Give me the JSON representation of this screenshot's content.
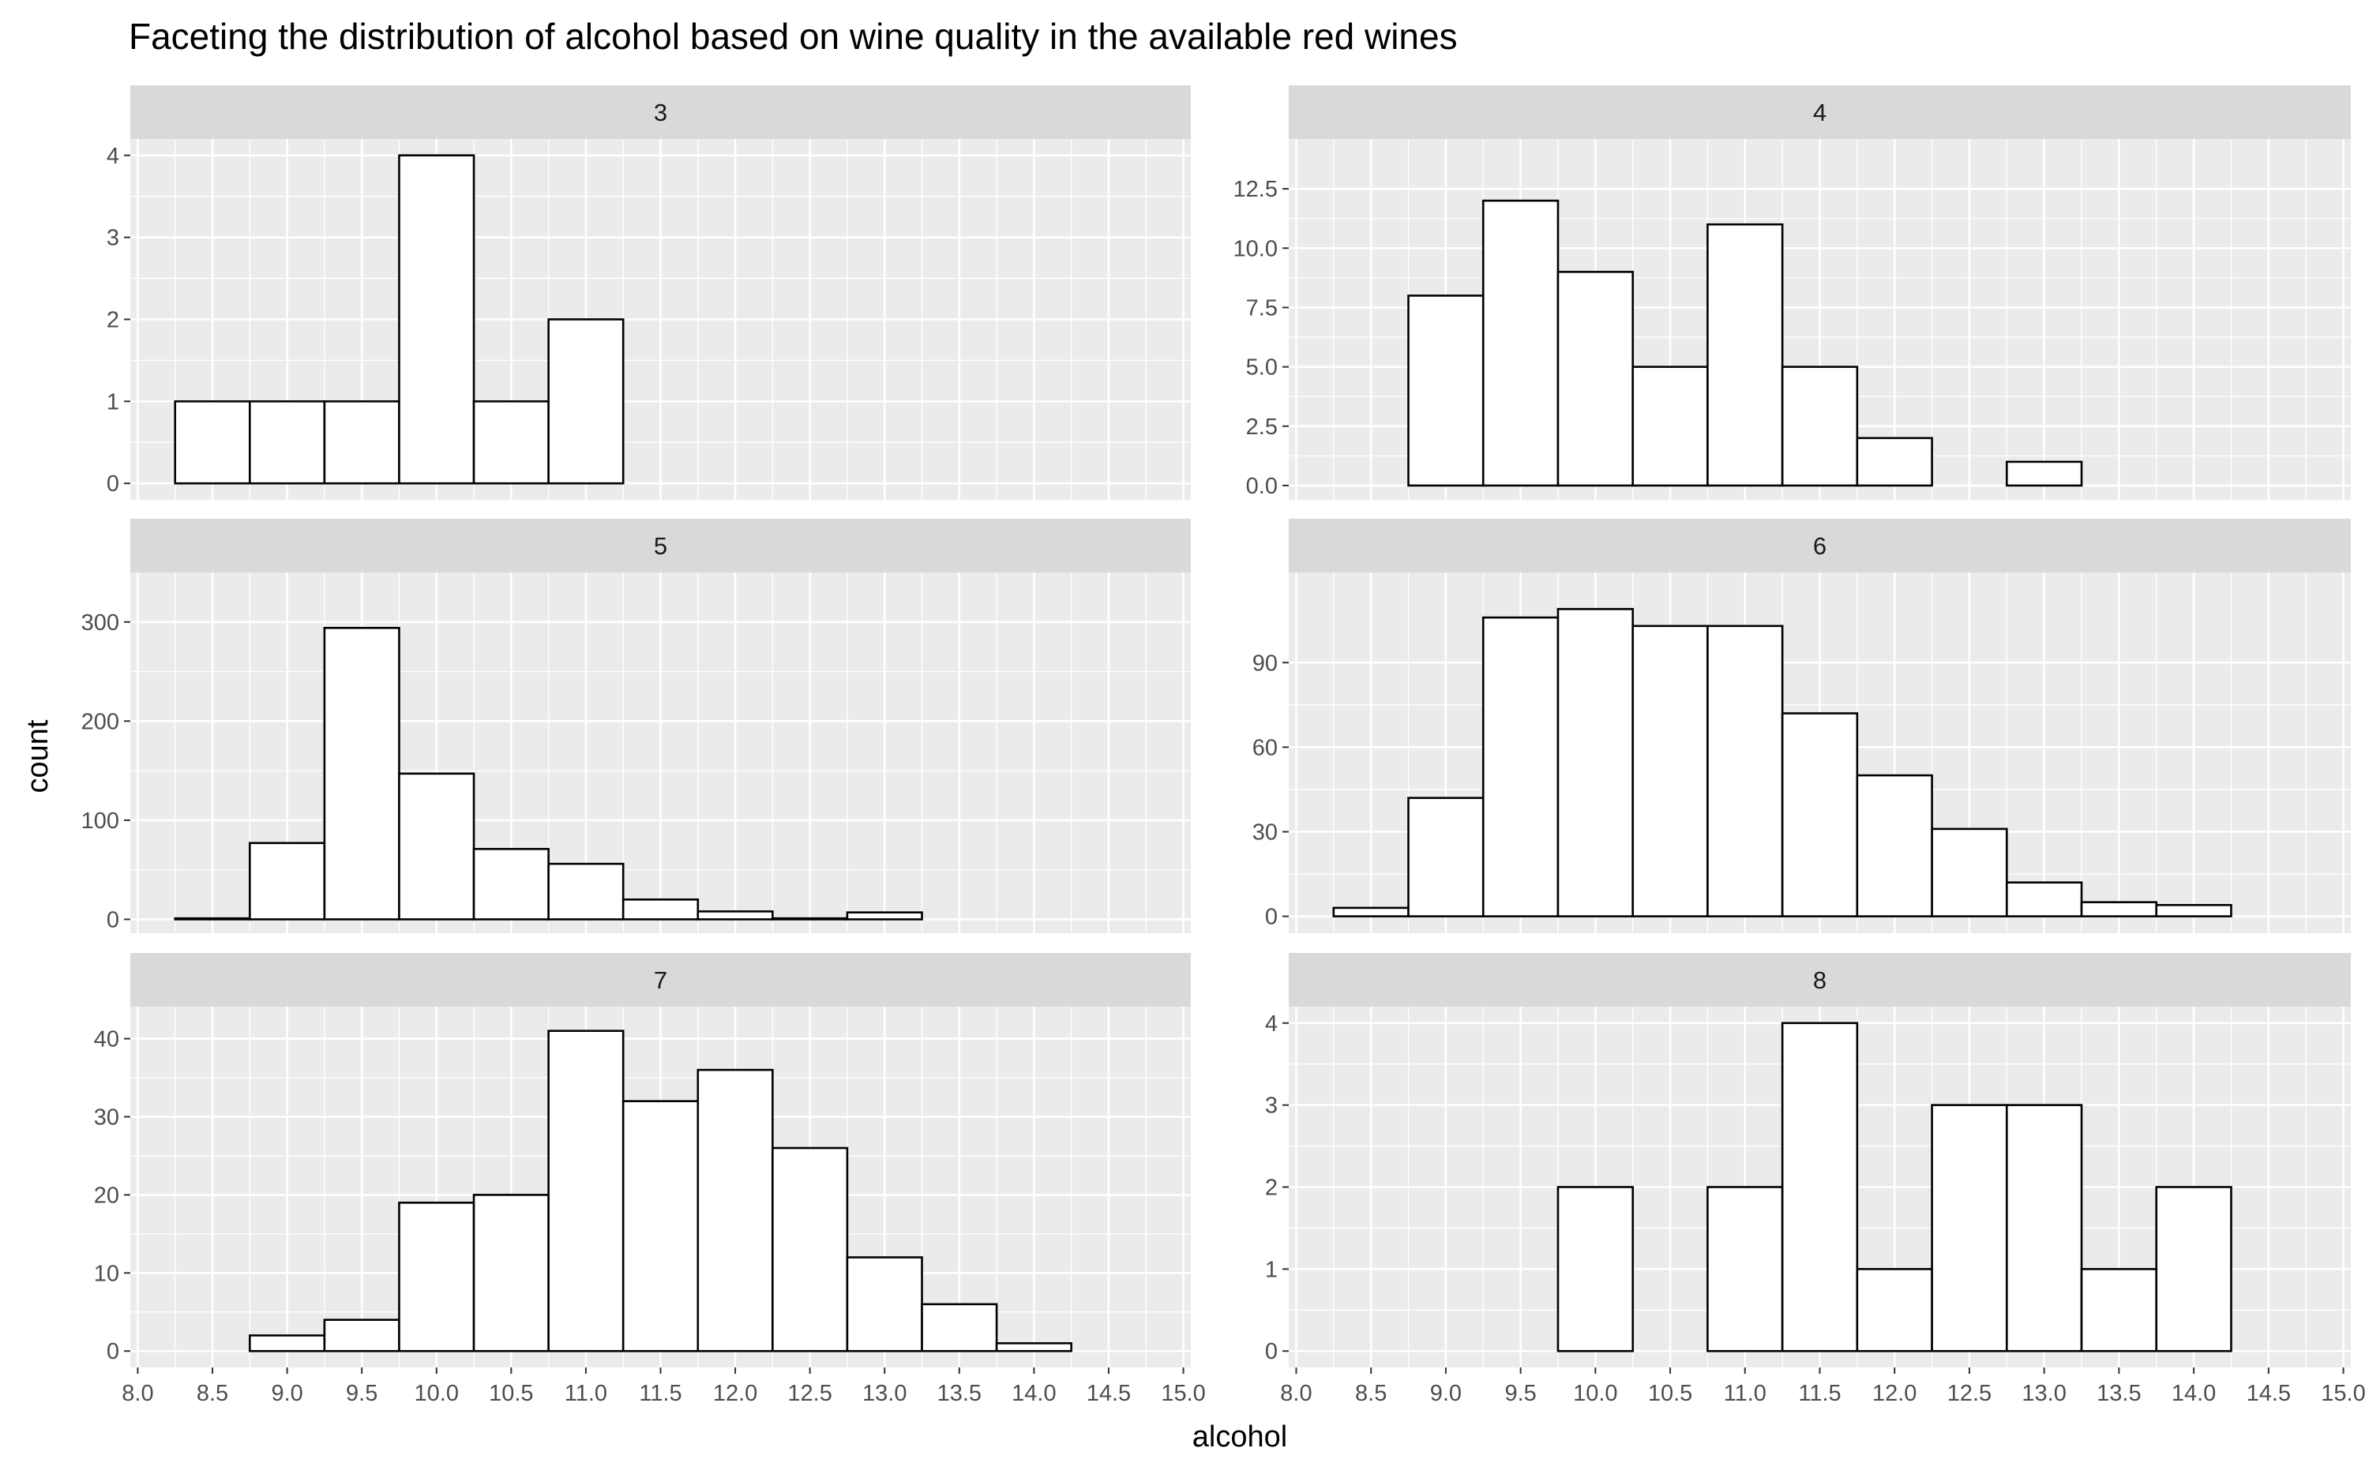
{
  "chart_data": {
    "type": "bar",
    "title": "Faceting the distribution of alcohol based on wine quality in the available red wines",
    "xlabel": "alcohol",
    "ylabel": "count",
    "grid": true,
    "xlim": [
      7.95,
      15.05
    ],
    "x_ticks": [
      "8.0",
      "8.5",
      "9.0",
      "9.5",
      "10.0",
      "10.5",
      "11.0",
      "11.5",
      "12.0",
      "12.5",
      "13.0",
      "13.5",
      "14.0",
      "14.5",
      "15.0"
    ],
    "bin_width": 0.5,
    "bin_centers": [
      8.5,
      9.0,
      9.5,
      10.0,
      10.5,
      11.0,
      11.5,
      12.0,
      12.5,
      13.0,
      13.5,
      14.0,
      14.5
    ],
    "facets": [
      {
        "label": "3",
        "ylim": [
          -0.2,
          4.2
        ],
        "y_ticks": [
          "0",
          "1",
          "2",
          "3",
          "4"
        ],
        "values": [
          1,
          1,
          1,
          4,
          1,
          2,
          0,
          0,
          0,
          0,
          0,
          0,
          0
        ]
      },
      {
        "label": "4",
        "ylim": [
          -0.6,
          14.6
        ],
        "y_ticks": [
          "0.0",
          "2.5",
          "5.0",
          "7.5",
          "10.0",
          "12.5"
        ],
        "values": [
          0,
          8,
          12,
          9,
          5,
          11,
          5,
          2,
          0,
          1,
          0,
          0,
          0
        ]
      },
      {
        "label": "5",
        "ylim": [
          -14,
          350
        ],
        "y_ticks": [
          "0",
          "100",
          "200",
          "300"
        ],
        "values": [
          1,
          77,
          294,
          147,
          71,
          56,
          20,
          8,
          1,
          7,
          0,
          0,
          0
        ]
      },
      {
        "label": "6",
        "ylim": [
          -6,
          122
        ],
        "y_ticks": [
          "0",
          "30",
          "60",
          "90"
        ],
        "values": [
          3,
          42,
          106,
          109,
          103,
          103,
          72,
          50,
          31,
          12,
          5,
          4,
          0
        ]
      },
      {
        "label": "7",
        "ylim": [
          -2.1,
          44.1
        ],
        "y_ticks": [
          "0",
          "10",
          "20",
          "30",
          "40"
        ],
        "values": [
          0,
          2,
          4,
          19,
          20,
          41,
          32,
          36,
          26,
          12,
          6,
          1,
          0
        ]
      },
      {
        "label": "8",
        "ylim": [
          -0.2,
          4.2
        ],
        "y_ticks": [
          "0",
          "1",
          "2",
          "3",
          "4"
        ],
        "values": [
          0,
          0,
          0,
          2,
          0,
          2,
          4,
          1,
          3,
          3,
          1,
          2,
          0
        ]
      }
    ]
  },
  "colors": {
    "panel_background": "#ebebeb",
    "strip_background": "#d9d9d9",
    "grid_major": "#ffffff",
    "bar_fill": "#ffffff",
    "bar_outline": "#000000",
    "tick_text": "#4d4d4d"
  }
}
